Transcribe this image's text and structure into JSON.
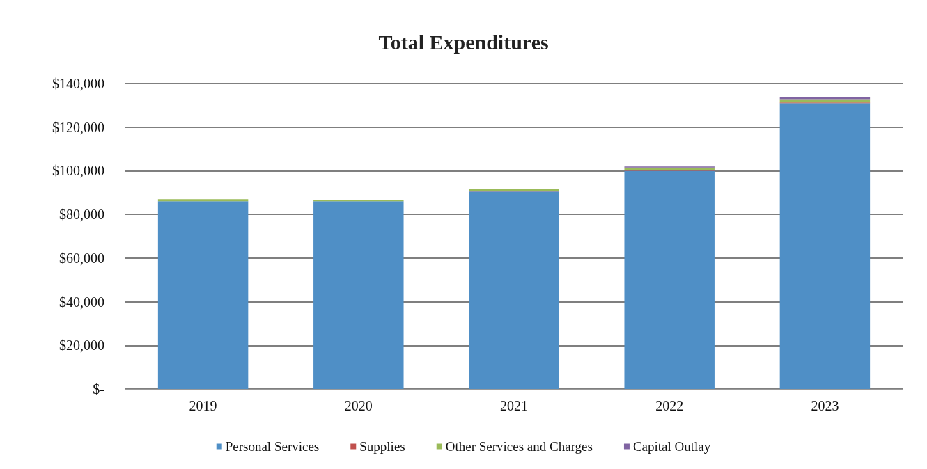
{
  "chart_data": {
    "type": "bar",
    "title": "Total Expenditures",
    "categories": [
      "2019",
      "2020",
      "2021",
      "2022",
      "2023"
    ],
    "stacked": true,
    "series": [
      {
        "name": "Personal Services",
        "color": "#4f8fc6",
        "values": [
          86000,
          86000,
          90500,
          100000,
          131000
        ]
      },
      {
        "name": "Supplies",
        "color": "#c0504d",
        "values": [
          null,
          null,
          300,
          300,
          300
        ]
      },
      {
        "name": "Other Services and Charges",
        "color": "#9bbb59",
        "values": [
          1000,
          700,
          800,
          1200,
          1500
        ]
      },
      {
        "name": "Capital Outlay",
        "color": "#8064a2",
        "values": [
          null,
          0,
          0,
          500,
          800
        ]
      }
    ],
    "ylim": [
      0,
      140000
    ],
    "yticks": [
      {
        "value": 0,
        "label": "$-"
      },
      {
        "value": 20000,
        "label": "$20,000"
      },
      {
        "value": 40000,
        "label": "$40,000"
      },
      {
        "value": 60000,
        "label": "$60,000"
      },
      {
        "value": 80000,
        "label": "$80,000"
      },
      {
        "value": 100000,
        "label": "$100,000"
      },
      {
        "value": 120000,
        "label": "$120,000"
      },
      {
        "value": 140000,
        "label": "$140,000"
      }
    ],
    "grid": "y",
    "legend": "bottom"
  }
}
